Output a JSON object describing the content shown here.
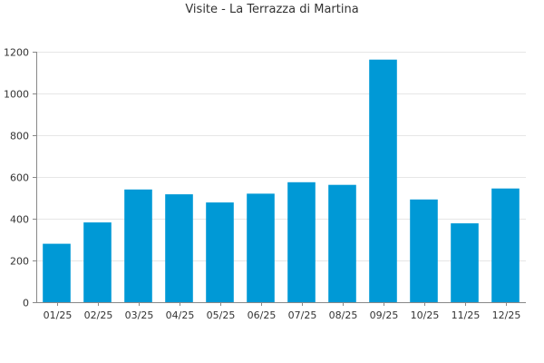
{
  "chart_data": {
    "type": "bar",
    "title": "Visite - La Terrazza di Martina",
    "xlabel": "",
    "ylabel": "",
    "categories": [
      "01/25",
      "02/25",
      "03/25",
      "04/25",
      "05/25",
      "06/25",
      "07/25",
      "08/25",
      "09/25",
      "10/25",
      "11/25",
      "12/25"
    ],
    "values": [
      280,
      382,
      540,
      517,
      478,
      520,
      575,
      562,
      1162,
      492,
      378,
      545
    ],
    "ylim": [
      0,
      1200
    ],
    "yticks": [
      0,
      200,
      400,
      600,
      800,
      1000,
      1200
    ],
    "grid": true,
    "bar_color": "#0099d6",
    "grid_color": "#e6e6e6",
    "axis_color": "#888888"
  }
}
